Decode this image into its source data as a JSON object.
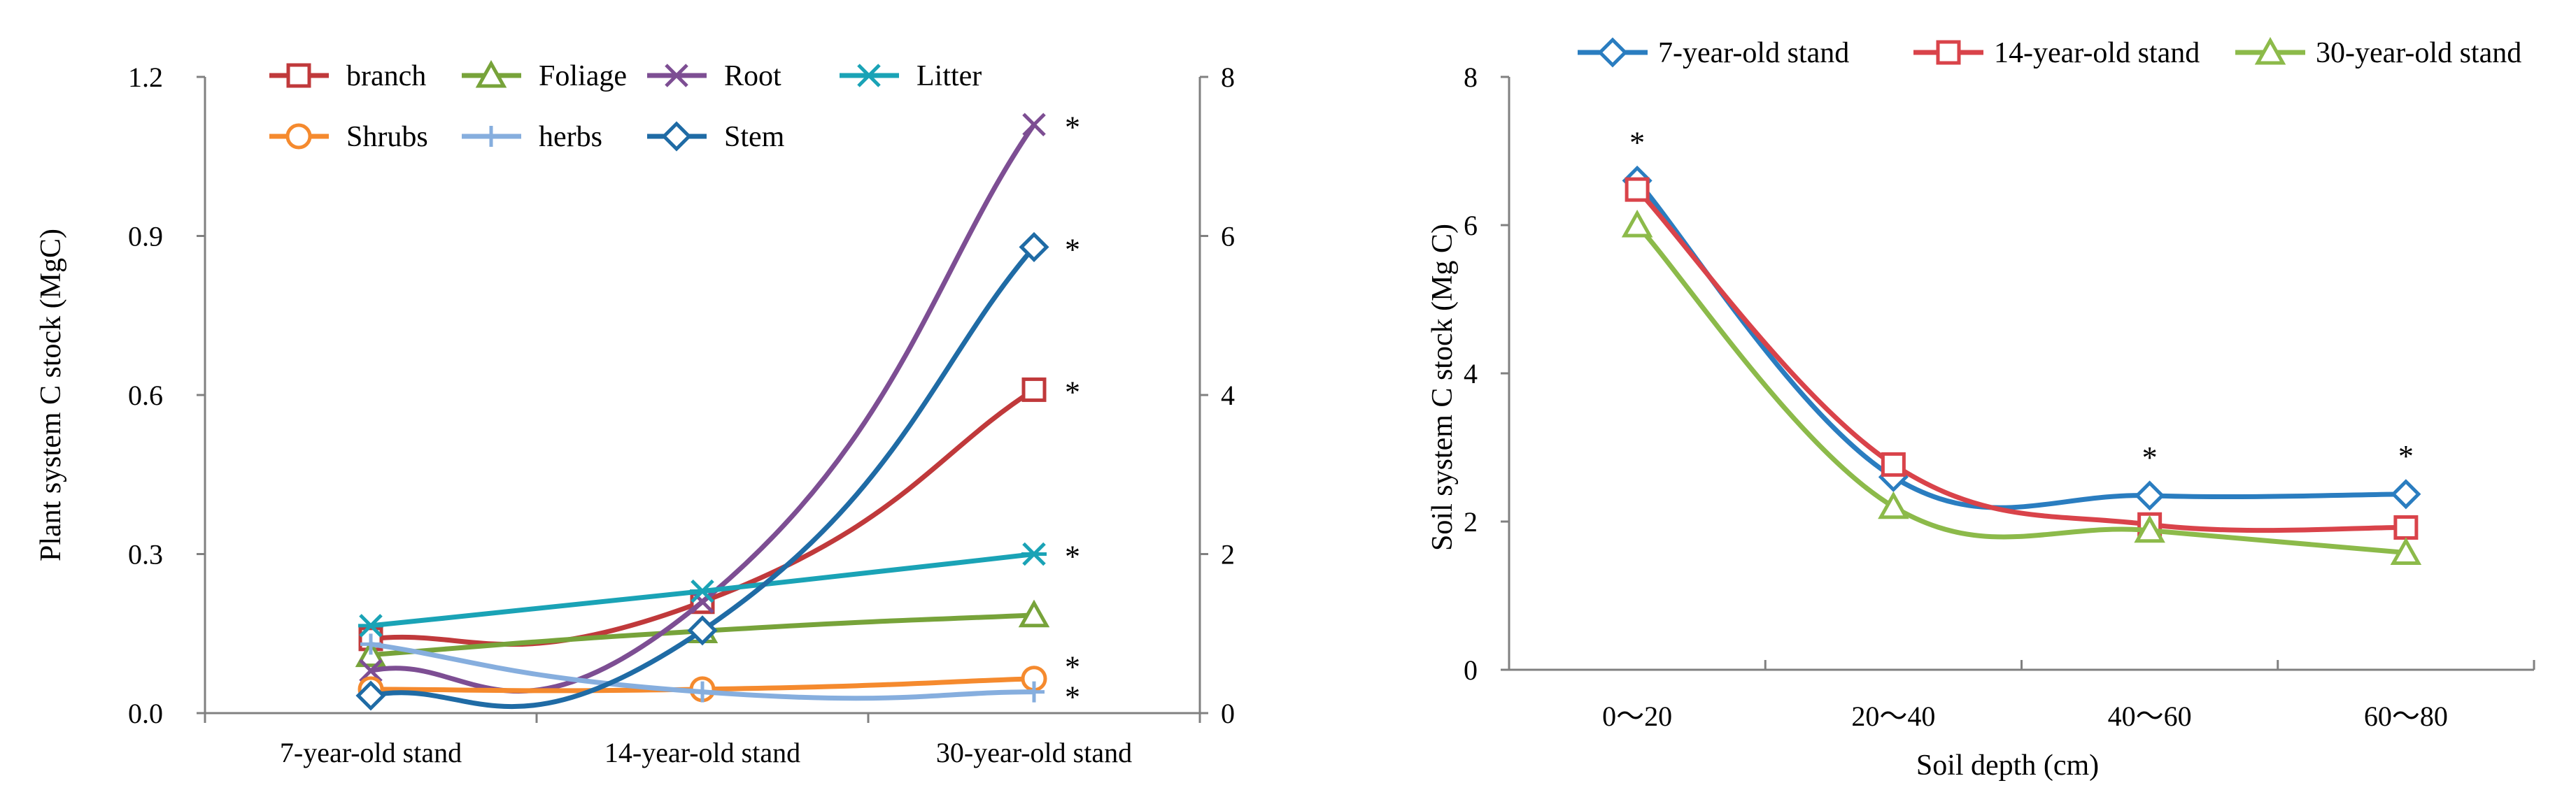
{
  "colors": {
    "branch": "#c0393b",
    "foliage": "#77a33a",
    "root": "#7d4e93",
    "litter": "#1aa3b6",
    "shrubs": "#f58a2e",
    "herbs": "#86aede",
    "stem": "#1f6ba5",
    "soil_7": "#2a7dc0",
    "soil_14": "#d9434a",
    "soil_30": "#8cba4a"
  },
  "chart_data": [
    {
      "id": "left",
      "type": "line",
      "title": "",
      "xlabel": "",
      "ylabel": "Plant system C stock (MgC)",
      "categories": [
        "7-year-old stand",
        "14-year-old stand",
        "30-year-old stand"
      ],
      "ylim": [
        0,
        1.2
      ],
      "yticks": [
        "0.0",
        "0.3",
        "0.6",
        "0.9",
        "1.2"
      ],
      "y2lim": [
        0,
        8
      ],
      "y2ticks": [
        "0",
        "2",
        "4",
        "6",
        "8"
      ],
      "grid": false,
      "legend_position": "top-left",
      "series": [
        {
          "key": "branch",
          "name": "branch",
          "marker": "square",
          "axis": "left",
          "values": [
            0.14,
            0.21,
            0.61
          ],
          "annotation": "*"
        },
        {
          "key": "foliage",
          "name": "Foliage",
          "marker": "triangle",
          "axis": "left",
          "values": [
            0.11,
            0.155,
            0.185
          ],
          "annotation": ""
        },
        {
          "key": "root",
          "name": "Root",
          "marker": "x",
          "axis": "left",
          "values": [
            0.08,
            0.21,
            1.11
          ],
          "annotation": "*"
        },
        {
          "key": "litter",
          "name": "Litter",
          "marker": "asterisk",
          "axis": "left",
          "values": [
            0.165,
            0.23,
            0.3
          ],
          "annotation": "*"
        },
        {
          "key": "shrubs",
          "name": "Shrubs",
          "marker": "circle",
          "axis": "left",
          "values": [
            0.045,
            0.045,
            0.065
          ],
          "annotation": "*"
        },
        {
          "key": "herbs",
          "name": "herbs",
          "marker": "plus",
          "axis": "left",
          "values": [
            0.13,
            0.04,
            0.04
          ],
          "annotation": "*"
        },
        {
          "key": "stem",
          "name": "Stem",
          "marker": "diamond",
          "axis": "right",
          "values": [
            0.22,
            1.04,
            5.86
          ],
          "annotation": "*"
        }
      ]
    },
    {
      "id": "right",
      "type": "line",
      "title": "",
      "xlabel": "Soil depth (cm)",
      "ylabel": "Soil system C stock (Mg C)",
      "categories": [
        "0～20",
        "20～40",
        "40～60",
        "60～80"
      ],
      "ylim": [
        0,
        8
      ],
      "yticks": [
        "0",
        "2",
        "4",
        "6",
        "8"
      ],
      "grid": false,
      "legend_position": "top",
      "series": [
        {
          "key": "soil_7",
          "name": "7-year-old stand",
          "marker": "diamond",
          "values": [
            6.6,
            2.6,
            2.35,
            2.37
          ]
        },
        {
          "key": "soil_14",
          "name": "14-year-old stand",
          "marker": "square",
          "values": [
            6.48,
            2.77,
            1.96,
            1.92
          ]
        },
        {
          "key": "soil_30",
          "name": "30-year-old stand",
          "marker": "triangle",
          "values": [
            6.0,
            2.2,
            1.88,
            1.58
          ]
        }
      ],
      "annotations": [
        {
          "category_index": 0,
          "value": 6.6,
          "text": "*"
        },
        {
          "category_index": 2,
          "value": 2.35,
          "text": "*"
        },
        {
          "category_index": 3,
          "value": 2.37,
          "text": "*"
        }
      ]
    }
  ]
}
